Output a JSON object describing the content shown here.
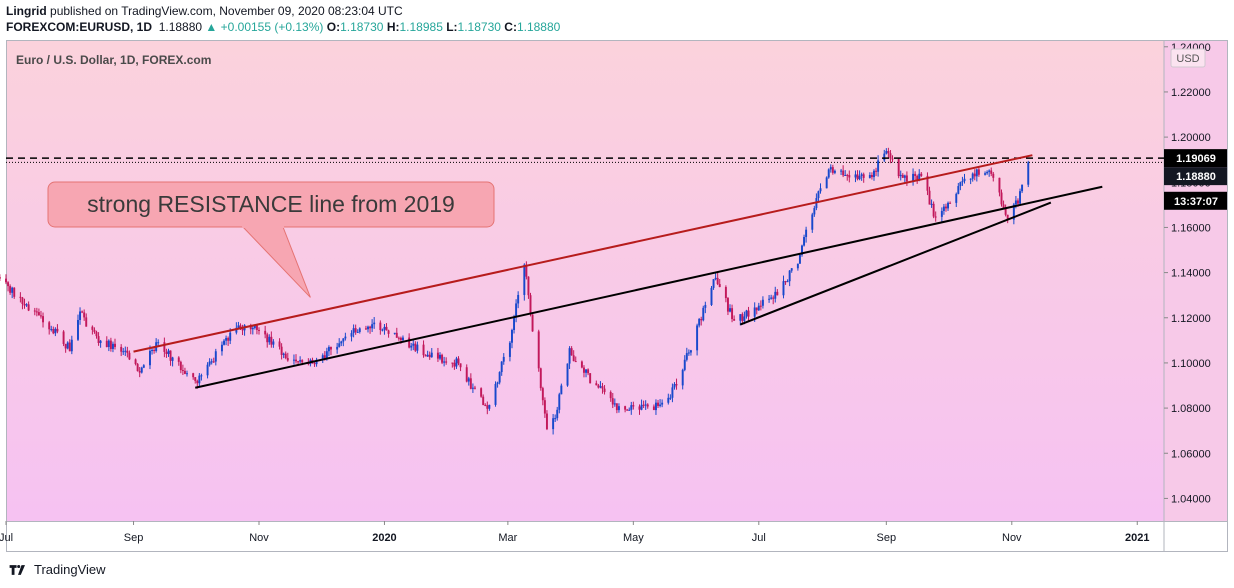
{
  "header": {
    "author": "Lingrid",
    "published_text": "published on TradingView.com, November 09, 2020 08:23:04 UTC",
    "symbol": "FOREXCOM:EURUSD, 1D",
    "last_price": "1.18880",
    "change": "▲ +0.00155 (+0.13%)",
    "o_label": "O:",
    "o_value": "1.18730",
    "h_label": "H:",
    "h_value": "1.18985",
    "l_label": "L:",
    "l_value": "1.18730",
    "c_label": "C:",
    "c_value": "1.18880"
  },
  "footer": {
    "brand": "TradingView"
  },
  "colors": {
    "up_candle": "#1848cc",
    "down_candle": "#c2185b",
    "resistance_line": "#b71c1c",
    "support_line": "#000000",
    "annotation_fill": "#f7a6b2",
    "annotation_border": "#e57373",
    "bg_top": "#fbd2dc",
    "bg_bottom": "#f6c2f2"
  },
  "chart_data": {
    "type": "candlestick",
    "title": "Euro / U.S. Dollar, 1D, FOREX.com",
    "currency_label": "USD",
    "x_range": [
      "2019-07-01",
      "2021-01-14"
    ],
    "ylim": [
      1.03,
      1.243
    ],
    "y_ticks": [
      1.04,
      1.06,
      1.08,
      1.1,
      1.12,
      1.14,
      1.16,
      1.18,
      1.2,
      1.22,
      1.24
    ],
    "y_tick_labels": [
      "1.04000",
      "1.06000",
      "1.08000",
      "1.10000",
      "1.12000",
      "1.14000",
      "1.16000",
      "1.18000",
      "1.20000",
      "1.22000",
      "1.24000"
    ],
    "x_ticks": [
      {
        "date": "2019-07-01",
        "label": "Jul",
        "bold": false
      },
      {
        "date": "2019-09-01",
        "label": "Sep",
        "bold": false
      },
      {
        "date": "2019-11-01",
        "label": "Nov",
        "bold": false
      },
      {
        "date": "2020-01-01",
        "label": "2020",
        "bold": true
      },
      {
        "date": "2020-03-01",
        "label": "Mar",
        "bold": false
      },
      {
        "date": "2020-05-01",
        "label": "May",
        "bold": false
      },
      {
        "date": "2020-07-01",
        "label": "Jul",
        "bold": false
      },
      {
        "date": "2020-09-01",
        "label": "Sep",
        "bold": false
      },
      {
        "date": "2020-11-01",
        "label": "Nov",
        "bold": false
      },
      {
        "date": "2021-01-01",
        "label": "2021",
        "bold": true
      }
    ],
    "price_path": [
      [
        "2019-06-28",
        1.138
      ],
      [
        "2019-07-10",
        1.125
      ],
      [
        "2019-07-25",
        1.114
      ],
      [
        "2019-08-01",
        1.106
      ],
      [
        "2019-08-06",
        1.122
      ],
      [
        "2019-08-15",
        1.11
      ],
      [
        "2019-08-28",
        1.105
      ],
      [
        "2019-09-03",
        1.096
      ],
      [
        "2019-09-12",
        1.108
      ],
      [
        "2019-09-20",
        1.102
      ],
      [
        "2019-10-01",
        1.091
      ],
      [
        "2019-10-10",
        1.102
      ],
      [
        "2019-10-21",
        1.116
      ],
      [
        "2019-10-31",
        1.115
      ],
      [
        "2019-11-15",
        1.103
      ],
      [
        "2019-11-29",
        1.1
      ],
      [
        "2019-12-13",
        1.112
      ],
      [
        "2019-12-27",
        1.118
      ],
      [
        "2020-01-10",
        1.11
      ],
      [
        "2020-01-24",
        1.103
      ],
      [
        "2020-02-05",
        1.1
      ],
      [
        "2020-02-20",
        1.079
      ],
      [
        "2020-03-02",
        1.11
      ],
      [
        "2020-03-09",
        1.145
      ],
      [
        "2020-03-13",
        1.115
      ],
      [
        "2020-03-20",
        1.07
      ],
      [
        "2020-03-24",
        1.076
      ],
      [
        "2020-03-31",
        1.105
      ],
      [
        "2020-04-10",
        1.093
      ],
      [
        "2020-04-24",
        1.08
      ],
      [
        "2020-05-06",
        1.08
      ],
      [
        "2020-05-15",
        1.082
      ],
      [
        "2020-05-22",
        1.09
      ],
      [
        "2020-06-01",
        1.115
      ],
      [
        "2020-06-10",
        1.138
      ],
      [
        "2020-06-19",
        1.118
      ],
      [
        "2020-06-30",
        1.124
      ],
      [
        "2020-07-09",
        1.13
      ],
      [
        "2020-07-20",
        1.145
      ],
      [
        "2020-07-31",
        1.178
      ],
      [
        "2020-08-05",
        1.186
      ],
      [
        "2020-08-13",
        1.182
      ],
      [
        "2020-08-25",
        1.183
      ],
      [
        "2020-09-01",
        1.195
      ],
      [
        "2020-09-09",
        1.181
      ],
      [
        "2020-09-18",
        1.183
      ],
      [
        "2020-09-25",
        1.163
      ],
      [
        "2020-10-09",
        1.182
      ],
      [
        "2020-10-21",
        1.186
      ],
      [
        "2020-10-30",
        1.165
      ],
      [
        "2020-11-04",
        1.172
      ],
      [
        "2020-11-09",
        1.1888
      ]
    ],
    "trend_lines": [
      {
        "name": "resistance",
        "from": [
          "2019-09-01",
          1.105
        ],
        "to": [
          "2020-11-11",
          1.192
        ]
      },
      {
        "name": "support-1",
        "from": [
          "2019-10-01",
          1.089
        ],
        "to": [
          "2020-12-15",
          1.178
        ]
      },
      {
        "name": "support-2",
        "from": [
          "2020-06-22",
          1.117
        ],
        "to": [
          "2020-11-20",
          1.171
        ]
      }
    ],
    "horizontal_lines": [
      {
        "price": 1.19069,
        "style": "dashed"
      },
      {
        "price": 1.1888,
        "style": "dotted"
      }
    ],
    "price_labels": [
      {
        "price": 1.19069,
        "text": "1.19069"
      },
      {
        "price": 1.1888,
        "text": "1.18880"
      },
      {
        "price": 1.1718,
        "text": "13:37:07"
      }
    ],
    "annotation": {
      "text": "strong RESISTANCE line from 2019",
      "points_to": [
        "2019-11-26",
        1.129
      ]
    }
  }
}
